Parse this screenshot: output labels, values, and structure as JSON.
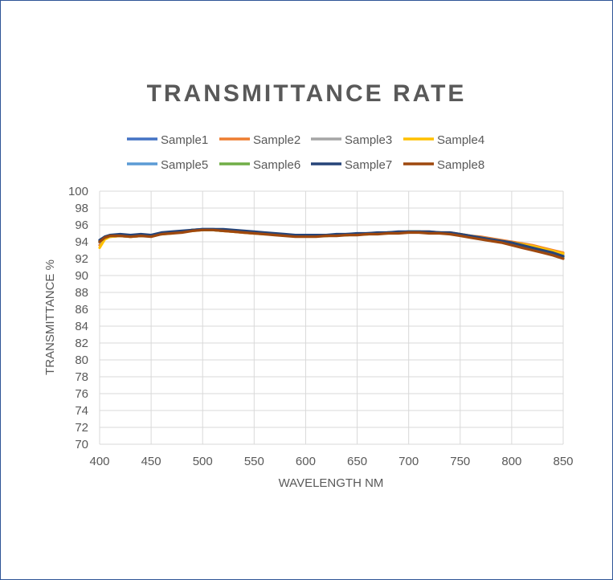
{
  "chart_data": {
    "type": "line",
    "title": "TRANSMITTANCE RATE",
    "xlabel": "WAVELENGTH NM",
    "ylabel": "TRANSMITTANCE %",
    "xlim": [
      400,
      850
    ],
    "ylim": [
      70,
      100
    ],
    "x_ticks": [
      "400",
      "450",
      "500",
      "550",
      "600",
      "650",
      "700",
      "750",
      "800",
      "850"
    ],
    "y_ticks": [
      "70",
      "72",
      "74",
      "76",
      "78",
      "80",
      "82",
      "84",
      "86",
      "88",
      "90",
      "92",
      "94",
      "96",
      "98",
      "100"
    ],
    "grid": true,
    "legend_position": "top",
    "x": [
      400,
      405,
      410,
      420,
      430,
      440,
      450,
      460,
      470,
      480,
      490,
      500,
      510,
      520,
      530,
      540,
      550,
      560,
      570,
      580,
      590,
      600,
      610,
      620,
      630,
      640,
      650,
      660,
      670,
      680,
      690,
      700,
      710,
      720,
      730,
      740,
      750,
      760,
      770,
      780,
      790,
      800,
      810,
      820,
      830,
      840,
      850
    ],
    "series": [
      {
        "name": "Sample1",
        "color": "#4472c4",
        "values": [
          94.0,
          94.5,
          94.7,
          94.8,
          94.7,
          94.8,
          94.7,
          95.0,
          95.1,
          95.2,
          95.4,
          95.5,
          95.5,
          95.4,
          95.3,
          95.2,
          95.1,
          95.0,
          94.9,
          94.8,
          94.7,
          94.7,
          94.7,
          94.8,
          94.8,
          94.9,
          94.9,
          95.0,
          95.0,
          95.1,
          95.1,
          95.2,
          95.2,
          95.1,
          95.1,
          95.0,
          94.8,
          94.6,
          94.4,
          94.2,
          94.0,
          93.8,
          93.5,
          93.2,
          92.9,
          92.6,
          92.2
        ]
      },
      {
        "name": "Sample2",
        "color": "#ed7d31",
        "values": [
          93.6,
          94.4,
          94.6,
          94.7,
          94.6,
          94.7,
          94.7,
          94.9,
          95.1,
          95.2,
          95.4,
          95.4,
          95.4,
          95.3,
          95.2,
          95.1,
          95.0,
          95.0,
          94.9,
          94.8,
          94.7,
          94.7,
          94.7,
          94.7,
          94.8,
          94.8,
          94.9,
          94.9,
          95.0,
          95.1,
          95.1,
          95.2,
          95.2,
          95.2,
          95.1,
          95.1,
          94.9,
          94.7,
          94.6,
          94.4,
          94.2,
          94.0,
          93.8,
          93.6,
          93.3,
          93.0,
          92.7
        ]
      },
      {
        "name": "Sample3",
        "color": "#a5a5a5",
        "values": [
          93.9,
          94.4,
          94.6,
          94.7,
          94.6,
          94.7,
          94.7,
          94.9,
          95.1,
          95.2,
          95.4,
          95.4,
          95.4,
          95.3,
          95.3,
          95.2,
          95.1,
          95.0,
          94.9,
          94.8,
          94.7,
          94.7,
          94.7,
          94.7,
          94.8,
          94.8,
          94.9,
          94.9,
          95.0,
          95.1,
          95.1,
          95.2,
          95.2,
          95.1,
          95.1,
          95.0,
          94.8,
          94.6,
          94.5,
          94.3,
          94.1,
          93.9,
          93.6,
          93.4,
          93.1,
          92.8,
          92.5
        ]
      },
      {
        "name": "Sample4",
        "color": "#ffc000",
        "values": [
          93.3,
          94.3,
          94.6,
          94.7,
          94.6,
          94.7,
          94.7,
          94.9,
          95.0,
          95.2,
          95.3,
          95.4,
          95.4,
          95.3,
          95.2,
          95.1,
          95.0,
          94.9,
          94.9,
          94.8,
          94.7,
          94.7,
          94.7,
          94.7,
          94.8,
          94.8,
          94.9,
          94.9,
          95.0,
          95.0,
          95.1,
          95.2,
          95.2,
          95.1,
          95.1,
          95.0,
          94.9,
          94.7,
          94.5,
          94.3,
          94.1,
          93.9,
          93.7,
          93.5,
          93.2,
          92.9,
          92.6
        ]
      },
      {
        "name": "Sample5",
        "color": "#5b9bd5",
        "values": [
          94.1,
          94.6,
          94.7,
          94.8,
          94.7,
          94.8,
          94.7,
          95.0,
          95.1,
          95.2,
          95.4,
          95.5,
          95.5,
          95.4,
          95.3,
          95.2,
          95.1,
          95.0,
          94.9,
          94.8,
          94.7,
          94.7,
          94.7,
          94.8,
          94.8,
          94.9,
          94.9,
          95.0,
          95.0,
          95.1,
          95.1,
          95.2,
          95.2,
          95.1,
          95.1,
          95.0,
          94.8,
          94.6,
          94.4,
          94.2,
          94.0,
          93.8,
          93.5,
          93.2,
          92.9,
          92.6,
          92.3
        ]
      },
      {
        "name": "Sample6",
        "color": "#70ad47",
        "values": [
          94.0,
          94.5,
          94.7,
          94.8,
          94.7,
          94.7,
          94.7,
          95.0,
          95.1,
          95.2,
          95.4,
          95.4,
          95.4,
          95.3,
          95.3,
          95.2,
          95.1,
          95.0,
          94.9,
          94.8,
          94.7,
          94.7,
          94.7,
          94.7,
          94.8,
          94.8,
          94.9,
          94.9,
          95.0,
          95.1,
          95.1,
          95.2,
          95.2,
          95.1,
          95.1,
          95.0,
          94.8,
          94.6,
          94.4,
          94.2,
          94.0,
          93.8,
          93.5,
          93.2,
          92.9,
          92.6,
          92.2
        ]
      },
      {
        "name": "Sample7",
        "color": "#264478",
        "values": [
          94.2,
          94.6,
          94.8,
          94.9,
          94.8,
          94.9,
          94.8,
          95.1,
          95.2,
          95.3,
          95.4,
          95.5,
          95.5,
          95.5,
          95.4,
          95.3,
          95.2,
          95.1,
          95.0,
          94.9,
          94.8,
          94.8,
          94.8,
          94.8,
          94.9,
          94.9,
          95.0,
          95.0,
          95.1,
          95.1,
          95.2,
          95.2,
          95.2,
          95.2,
          95.1,
          95.1,
          94.9,
          94.7,
          94.5,
          94.3,
          94.1,
          93.9,
          93.6,
          93.3,
          93.0,
          92.7,
          92.3
        ]
      },
      {
        "name": "Sample8",
        "color": "#9e480e",
        "values": [
          94.0,
          94.5,
          94.7,
          94.7,
          94.6,
          94.7,
          94.6,
          94.9,
          95.0,
          95.1,
          95.3,
          95.4,
          95.4,
          95.3,
          95.2,
          95.1,
          95.0,
          94.9,
          94.8,
          94.7,
          94.6,
          94.6,
          94.6,
          94.7,
          94.7,
          94.8,
          94.8,
          94.9,
          94.9,
          95.0,
          95.0,
          95.1,
          95.1,
          95.0,
          95.0,
          94.9,
          94.7,
          94.5,
          94.3,
          94.1,
          93.9,
          93.6,
          93.3,
          93.0,
          92.7,
          92.4,
          92.0
        ]
      }
    ]
  }
}
